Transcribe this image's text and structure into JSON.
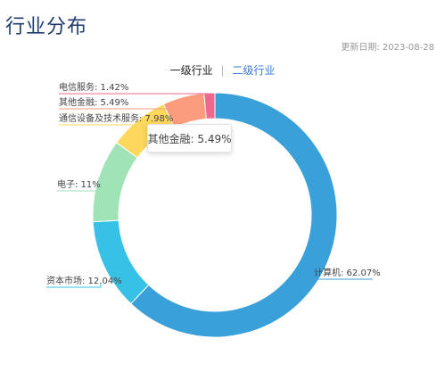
{
  "page": {
    "title": "行业分布",
    "update_date": "更新日期: 2023-08-28"
  },
  "tabs": [
    {
      "label": "一级行业",
      "active": true
    },
    {
      "label": "二级行业",
      "active": false
    }
  ],
  "tooltip": {
    "text": "其他金融: 5.49%"
  },
  "chart_data": {
    "type": "pie",
    "style": "donut",
    "categories": [
      "计算机",
      "资本市场",
      "电子",
      "通信设备及技术服务",
      "其他金融",
      "电信服务"
    ],
    "values": [
      62.07,
      12.04,
      11,
      7.98,
      5.49,
      1.42
    ],
    "labels": [
      "计算机: 62.07%",
      "资本市场: 12.04%",
      "电子: 11%",
      "通信设备及技术服务: 7.98%",
      "其他金融: 5.49%",
      "电信服务: 1.42%"
    ],
    "colors": [
      "#3aa0da",
      "#37c1e6",
      "#9fe3b7",
      "#fdd85c",
      "#fb9c7d",
      "#f0678f"
    ]
  }
}
